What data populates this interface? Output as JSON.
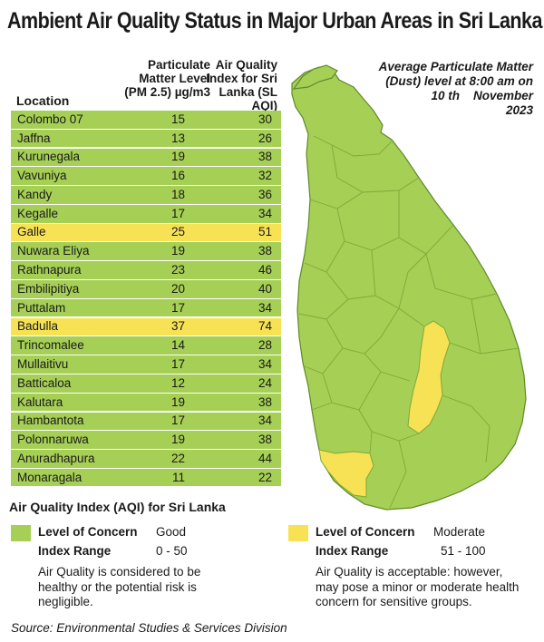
{
  "title": "Ambient Air Quality Status in  Major Urban Areas in Sri Lanka",
  "table": {
    "headers": {
      "location": "Location",
      "pm_line1": "Particulate",
      "pm_line2": "Matter Level",
      "pm_line3": "(PM 2.5) µg/m3",
      "aqi_line1": "Air Quality",
      "aqi_line2": "Index for Sri",
      "aqi_line3": "Lanka (SL AQI)"
    },
    "rows": [
      {
        "location": "Colombo 07",
        "pm": "15",
        "aqi": "30",
        "level": "good"
      },
      {
        "location": "Jaffna",
        "pm": "13",
        "aqi": "26",
        "level": "good"
      },
      {
        "location": "Kurunegala",
        "pm": "19",
        "aqi": "38",
        "level": "good"
      },
      {
        "location": "Vavuniya",
        "pm": "16",
        "aqi": "32",
        "level": "good"
      },
      {
        "location": "Kandy",
        "pm": "18",
        "aqi": "36",
        "level": "good"
      },
      {
        "location": "Kegalle",
        "pm": "17",
        "aqi": "34",
        "level": "good"
      },
      {
        "location": "Galle",
        "pm": "25",
        "aqi": "51",
        "level": "moderate"
      },
      {
        "location": "Nuwara Eliya",
        "pm": "19",
        "aqi": "38",
        "level": "good"
      },
      {
        "location": "Rathnapura",
        "pm": "23",
        "aqi": "46",
        "level": "good"
      },
      {
        "location": "Embilipitiya",
        "pm": "20",
        "aqi": "40",
        "level": "good"
      },
      {
        "location": "Puttalam",
        "pm": "17",
        "aqi": "34",
        "level": "good"
      },
      {
        "location": "Badulla",
        "pm": "37",
        "aqi": "74",
        "level": "moderate"
      },
      {
        "location": "Trincomalee",
        "pm": "14",
        "aqi": "28",
        "level": "good"
      },
      {
        "location": "Mullaitivu",
        "pm": "17",
        "aqi": "34",
        "level": "good"
      },
      {
        "location": "Batticaloa",
        "pm": "12",
        "aqi": "24",
        "level": "good"
      },
      {
        "location": "Kalutara",
        "pm": "19",
        "aqi": "38",
        "level": "good"
      },
      {
        "location": "Hambantota",
        "pm": "17",
        "aqi": "34",
        "level": "good"
      },
      {
        "location": "Polonnaruwa",
        "pm": "19",
        "aqi": "38",
        "level": "good"
      },
      {
        "location": "Anuradhapura",
        "pm": "22",
        "aqi": "44",
        "level": "good"
      },
      {
        "location": "Monaragala",
        "pm": "11",
        "aqi": "22",
        "level": "good"
      }
    ]
  },
  "map": {
    "title_line1": "Average Particulate Matter",
    "title_line2": "(Dust) level at 8:00 am on",
    "title_line3": "10 th    November",
    "title_line4": "2023",
    "colors": {
      "good": "#a6cf55",
      "moderate": "#f7e255",
      "border": "#7fa83a",
      "coast": "#5e8a2a"
    }
  },
  "legend": {
    "heading": "Air Quality Index (AQI) for Sri Lanka",
    "good": {
      "concern_label": "Level of Concern",
      "concern_value": "Good",
      "range_label": "Index Range",
      "range_value": "0 - 50",
      "description_line1": "Air Quality is considered to be",
      "description_line2": "healthy or the potential risk is",
      "description_line3": "negligible."
    },
    "moderate": {
      "concern_label": "Level of Concern",
      "concern_value": "Moderate",
      "range_label": "Index Range",
      "range_value": "51 - 100",
      "description_line1": "Air Quality is acceptable: however,",
      "description_line2": "may pose a minor or moderate health",
      "description_line3": "concern for sensitive groups."
    }
  },
  "source": "Source: Environmental Studies & Services Division"
}
